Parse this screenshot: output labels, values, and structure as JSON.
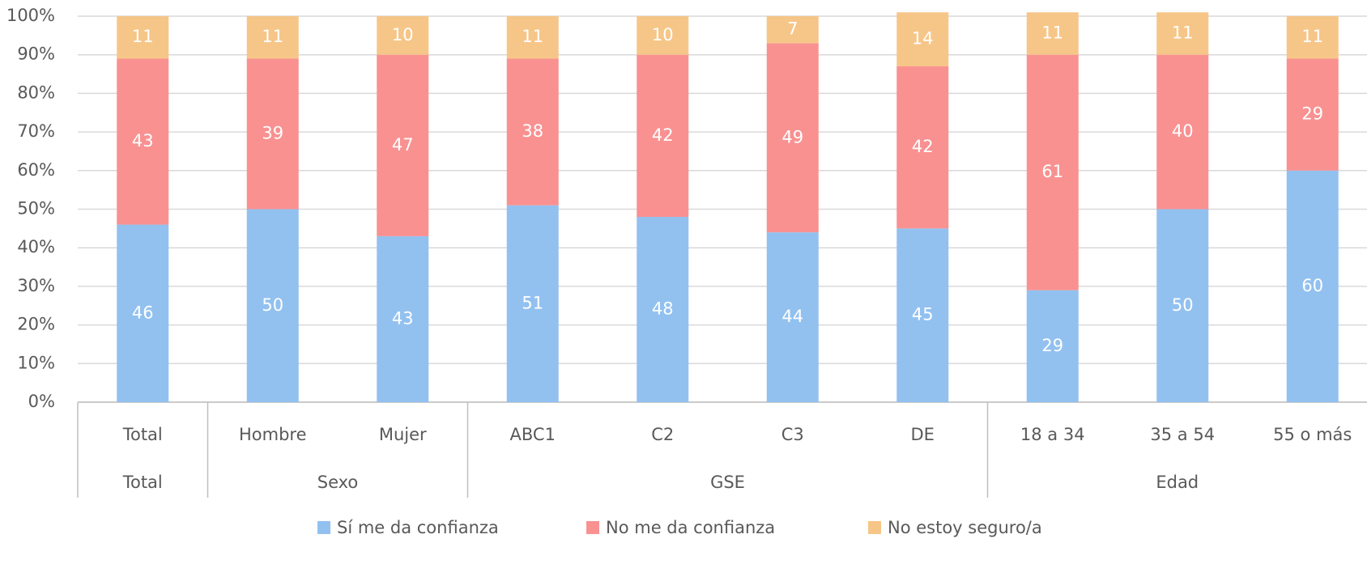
{
  "chart_data": {
    "type": "stacked_bar",
    "categories": [
      "Total",
      "Hombre",
      "Mujer",
      "ABC1",
      "C2",
      "C3",
      "DE",
      "18 a 34",
      "35 a 54",
      "55 o más"
    ],
    "groups": [
      {
        "name": "Total",
        "span": 1
      },
      {
        "name": "Sexo",
        "span": 2
      },
      {
        "name": "GSE",
        "span": 4
      },
      {
        "name": "Edad",
        "span": 3
      }
    ],
    "series": [
      {
        "name": "Sí me da confianza",
        "color": "#92c1f0",
        "values": [
          46,
          50,
          43,
          51,
          48,
          44,
          45,
          29,
          50,
          60
        ]
      },
      {
        "name": "No me da confianza",
        "color": "#f99191",
        "values": [
          43,
          39,
          47,
          38,
          42,
          49,
          42,
          61,
          40,
          29
        ]
      },
      {
        "name": "No estoy seguro/a",
        "color": "#f6c688",
        "values": [
          11,
          11,
          10,
          11,
          10,
          7,
          14,
          11,
          11,
          11
        ]
      }
    ],
    "ylim": [
      0,
      100
    ],
    "yticks": [
      {
        "value": 0,
        "label": "0%"
      },
      {
        "value": 10,
        "label": "10%"
      },
      {
        "value": 20,
        "label": "20%"
      },
      {
        "value": 30,
        "label": "30%"
      },
      {
        "value": 40,
        "label": "40%"
      },
      {
        "value": 50,
        "label": "50%"
      },
      {
        "value": 60,
        "label": "60%"
      },
      {
        "value": 70,
        "label": "70%"
      },
      {
        "value": 80,
        "label": "80%"
      },
      {
        "value": 90,
        "label": "90%"
      },
      {
        "value": 100,
        "label": "100%"
      }
    ],
    "grid": true,
    "legend": "bottom"
  }
}
